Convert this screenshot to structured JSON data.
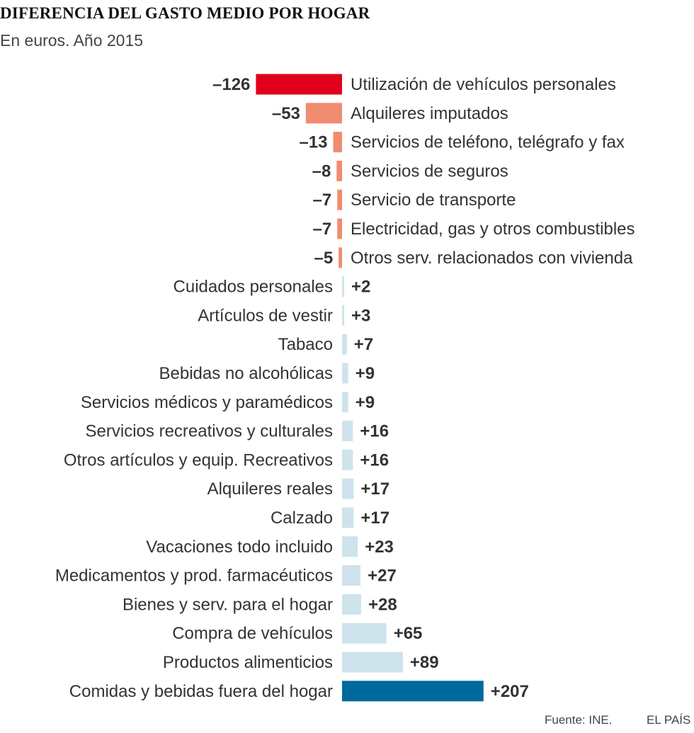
{
  "header": {
    "title": "DIFERENCIA DEL GASTO MEDIO POR HOGAR",
    "subtitle": "En euros. Año 2015"
  },
  "footer": {
    "source": "Fuente: INE.",
    "brand": "EL PAÍS"
  },
  "colors": {
    "negative_max": "#e0001b",
    "negative": "#f08c6f",
    "positive": "#cfe3ec",
    "positive_max": "#006a9f",
    "text": "#333333"
  },
  "chart_data": {
    "type": "bar",
    "orientation": "horizontal",
    "title": "DIFERENCIA DEL GASTO MEDIO POR HOGAR",
    "subtitle": "En euros. Año 2015",
    "xlabel": "",
    "ylabel": "",
    "unit": "euros",
    "grid": false,
    "categories": [
      "Utilización de vehículos personales",
      "Alquileres imputados",
      "Servicios de teléfono, telégrafo y fax",
      "Servicios de seguros",
      "Servicio de transporte",
      "Electricidad, gas y otros combustibles",
      "Otros serv. relacionados con vivienda",
      "Cuidados personales",
      "Artículos de vestir",
      "Tabaco",
      "Bebidas no alcohólicas",
      "Servicios médicos y paramédicos",
      "Servicios recreativos y culturales",
      "Otros artículos y equip. Recreativos",
      "Alquileres reales",
      "Calzado",
      "Vacaciones todo incluido",
      "Medicamentos y prod. farmacéuticos",
      "Bienes y serv. para el hogar",
      "Compra de vehículos",
      "Productos alimenticios",
      "Comidas y bebidas fuera del hogar"
    ],
    "values": [
      -126,
      -53,
      -13,
      -8,
      -7,
      -7,
      -5,
      2,
      3,
      7,
      9,
      9,
      16,
      16,
      17,
      17,
      23,
      27,
      28,
      65,
      89,
      207
    ],
    "value_labels": [
      "–126",
      "–53",
      "–13",
      "–8",
      "–7",
      "–7",
      "–5",
      "+2",
      "+3",
      "+7",
      "+9",
      "+9",
      "+16",
      "+16",
      "+17",
      "+17",
      "+23",
      "+27",
      "+28",
      "+65",
      "+89",
      "+207"
    ]
  }
}
